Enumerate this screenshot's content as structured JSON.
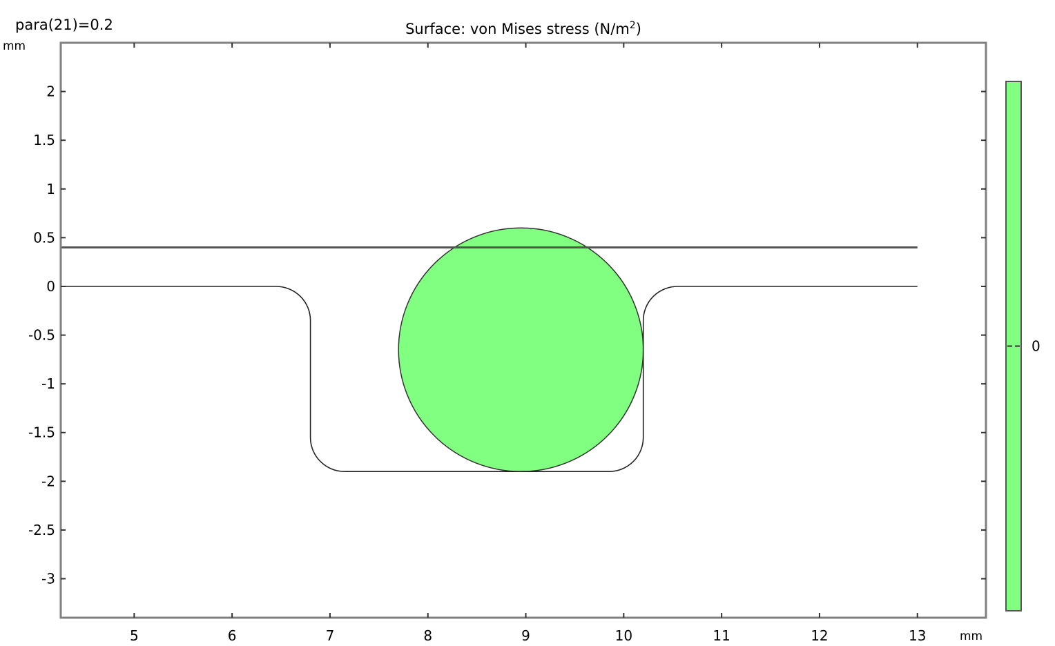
{
  "parameter_label": "para(21)=0.2",
  "chart_data": {
    "type": "surface-plot",
    "title_text": "Surface: von Mises stress (N/m",
    "title_superscript": "2",
    "title_suffix": ")",
    "x_unit": "mm",
    "y_unit": "mm",
    "xlim": [
      4.25,
      13.7
    ],
    "ylim": [
      -3.4,
      2.5
    ],
    "x_ticks": [
      5,
      6,
      7,
      8,
      9,
      10,
      11,
      12,
      13
    ],
    "y_ticks": [
      2,
      1.5,
      1,
      0.5,
      0,
      -0.5,
      -1,
      -1.5,
      -2,
      -2.5,
      -3
    ],
    "grid": false,
    "geometry": {
      "top_line": {
        "x_start": 4.25,
        "x_end": 13,
        "y": 0.4
      },
      "groove": {
        "left_x": 6.8,
        "right_x": 10.2,
        "top_y": 0,
        "bottom_y": -1.9,
        "x_start": 4.25,
        "x_end": 13,
        "fillet_radius": 0.35
      },
      "circle": {
        "cx": 8.95,
        "cy": -0.65,
        "r": 1.25
      }
    },
    "surface_color": "#80ff80",
    "colorbar": {
      "color": "#80ff80",
      "tick_values": [
        0
      ],
      "tick_labels": [
        "0"
      ]
    }
  }
}
